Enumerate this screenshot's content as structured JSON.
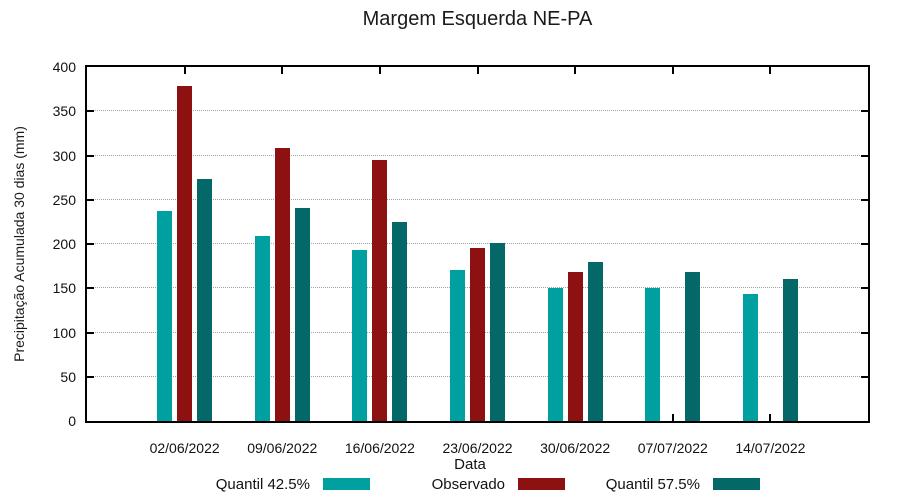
{
  "chart_data": {
    "type": "bar",
    "title": "Margem Esquerda NE-PA",
    "xlabel": "Data",
    "ylabel": "Precipitação Acumulada 30 dias (mm)",
    "categories": [
      "02/06/2022",
      "09/06/2022",
      "16/06/2022",
      "23/06/2022",
      "30/06/2022",
      "07/07/2022",
      "14/07/2022"
    ],
    "series": [
      {
        "name": "Quantil 42.5%",
        "color": "#00A0A0",
        "values": [
          237,
          209,
          193,
          171,
          150,
          150,
          143
        ]
      },
      {
        "name": "Observado",
        "color": "#8E1111",
        "values": [
          379,
          308,
          295,
          195,
          168,
          null,
          null
        ]
      },
      {
        "name": "Quantil 57.5%",
        "color": "#056868",
        "values": [
          273,
          241,
          225,
          201,
          180,
          168,
          160
        ]
      }
    ],
    "ylim": [
      0,
      400
    ],
    "ytick_step": 50,
    "grid": true,
    "legend_position": "bottom"
  },
  "style": {
    "axis_color": "#000000",
    "grid_color": "#a3a3a3",
    "text_color": "#1a1a1a",
    "background": "#ffffff"
  }
}
